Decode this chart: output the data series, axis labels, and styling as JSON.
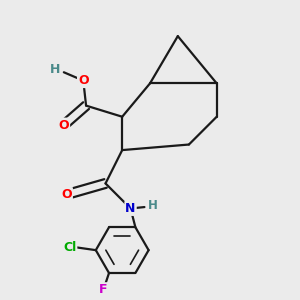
{
  "bg_color": "#ebebeb",
  "bond_color": "#1a1a1a",
  "bond_width": 1.6,
  "atom_colors": {
    "O": "#ff0000",
    "N": "#0000cc",
    "Cl": "#00aa00",
    "F": "#cc00cc",
    "H": "#4a8a8a",
    "C": "#1a1a1a"
  },
  "font_size": 9.5
}
